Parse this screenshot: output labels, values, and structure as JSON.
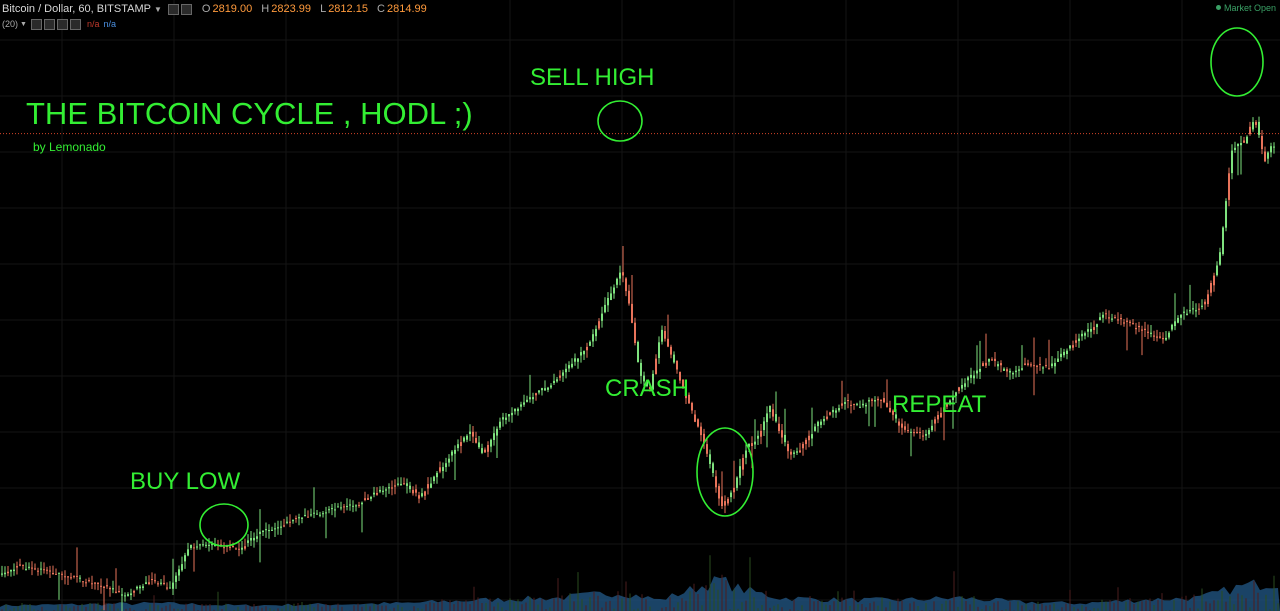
{
  "header": {
    "symbol": "Bitcoin / Dollar, 60, BITSTAMP",
    "open_label": "O",
    "open_value": "2819.00",
    "high_label": "H",
    "high_value": "2823.99",
    "low_label": "L",
    "low_value": "2812.15",
    "close_label": "C",
    "close_value": "2814.99",
    "indicator": "(20)",
    "na1": "n/a",
    "na2": "n/a",
    "market_status": "Market Open"
  },
  "annotations": {
    "title": "THE BITCOIN CYCLE , HODL ;)",
    "byline": "by Lemonado",
    "sell_high": "SELL HIGH",
    "crash": "CRASH",
    "buy_low": "BUY LOW",
    "repeat": "REPEAT"
  },
  "colors": {
    "background": "#000000",
    "up_candle": "#7ee27e",
    "down_candle": "#e8735a",
    "annotation": "#33ee33",
    "volume_area": "#1f4f78",
    "price_line": "#d4452a"
  },
  "chart_data": {
    "type": "candlestick",
    "title": "Bitcoin / Dollar, 60, BITSTAMP",
    "y_current": 2815,
    "ylim": [
      1850,
      3050
    ],
    "price_path": [
      [
        0,
        1900
      ],
      [
        20,
        1920
      ],
      [
        60,
        1905
      ],
      [
        100,
        1880
      ],
      [
        125,
        1860
      ],
      [
        150,
        1890
      ],
      [
        170,
        1875
      ],
      [
        190,
        1960
      ],
      [
        215,
        1965
      ],
      [
        240,
        1955
      ],
      [
        260,
        1990
      ],
      [
        300,
        2020
      ],
      [
        340,
        2040
      ],
      [
        360,
        2050
      ],
      [
        380,
        2075
      ],
      [
        405,
        2095
      ],
      [
        420,
        2060
      ],
      [
        440,
        2120
      ],
      [
        470,
        2200
      ],
      [
        485,
        2150
      ],
      [
        500,
        2220
      ],
      [
        525,
        2260
      ],
      [
        560,
        2310
      ],
      [
        590,
        2380
      ],
      [
        610,
        2480
      ],
      [
        622,
        2530
      ],
      [
        630,
        2460
      ],
      [
        640,
        2320
      ],
      [
        650,
        2280
      ],
      [
        662,
        2410
      ],
      [
        675,
        2340
      ],
      [
        690,
        2250
      ],
      [
        700,
        2200
      ],
      [
        715,
        2100
      ],
      [
        722,
        2040
      ],
      [
        735,
        2080
      ],
      [
        745,
        2160
      ],
      [
        760,
        2190
      ],
      [
        770,
        2250
      ],
      [
        790,
        2150
      ],
      [
        800,
        2160
      ],
      [
        820,
        2220
      ],
      [
        845,
        2260
      ],
      [
        860,
        2250
      ],
      [
        880,
        2270
      ],
      [
        905,
        2200
      ],
      [
        925,
        2190
      ],
      [
        945,
        2250
      ],
      [
        965,
        2300
      ],
      [
        990,
        2350
      ],
      [
        1010,
        2320
      ],
      [
        1030,
        2340
      ],
      [
        1050,
        2330
      ],
      [
        1070,
        2375
      ],
      [
        1090,
        2410
      ],
      [
        1105,
        2440
      ],
      [
        1130,
        2420
      ],
      [
        1165,
        2390
      ],
      [
        1180,
        2440
      ],
      [
        1205,
        2460
      ],
      [
        1220,
        2560
      ],
      [
        1232,
        2780
      ],
      [
        1245,
        2800
      ],
      [
        1255,
        2850
      ],
      [
        1265,
        2760
      ],
      [
        1272,
        2790
      ]
    ],
    "volume_path": [
      [
        0,
        0.05
      ],
      [
        80,
        0.06
      ],
      [
        160,
        0.07
      ],
      [
        240,
        0.05
      ],
      [
        320,
        0.06
      ],
      [
        400,
        0.07
      ],
      [
        480,
        0.1
      ],
      [
        560,
        0.12
      ],
      [
        620,
        0.17
      ],
      [
        660,
        0.1
      ],
      [
        700,
        0.22
      ],
      [
        720,
        0.28
      ],
      [
        740,
        0.2
      ],
      [
        780,
        0.12
      ],
      [
        840,
        0.1
      ],
      [
        900,
        0.1
      ],
      [
        960,
        0.12
      ],
      [
        1020,
        0.08
      ],
      [
        1080,
        0.07
      ],
      [
        1140,
        0.1
      ],
      [
        1200,
        0.12
      ],
      [
        1240,
        0.22
      ],
      [
        1270,
        0.26
      ]
    ]
  }
}
